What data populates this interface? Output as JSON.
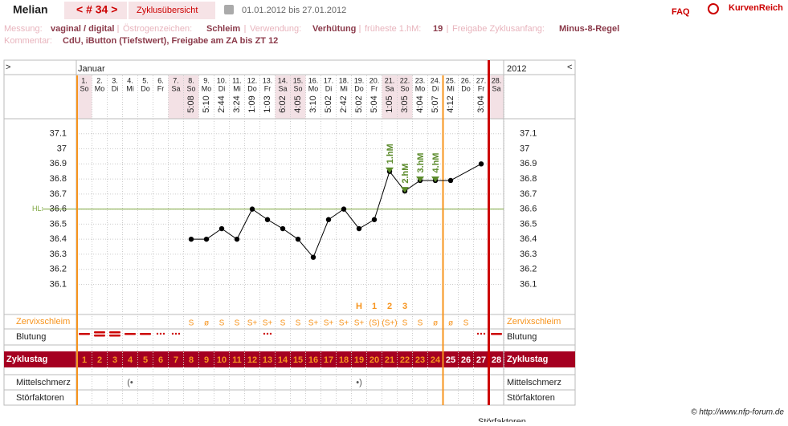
{
  "header": {
    "name": "Melian",
    "cycle": "< # 34 >",
    "tab": "Zyklusübersicht",
    "range": "01.01.2012 bis 27.01.2012",
    "faq": "FAQ",
    "brand": "KurvenReich"
  },
  "info": {
    "rows": [
      [
        {
          "label": "Messung:",
          "value": "vaginal / digital"
        },
        {
          "label": "Östrogenzeichen:",
          "value": "Schleim"
        },
        {
          "label": "Verwendung:",
          "value": "Verhütung"
        },
        {
          "label": "früheste 1.hM:",
          "value": "19"
        },
        {
          "label": "Freigabe Zyklusanfang:",
          "value": "Minus-8-Regel"
        }
      ],
      [
        {
          "label": "Kommentar:",
          "value": "CdU, iButton (Tiefstwert), Freigabe am ZA bis ZT 12"
        }
      ]
    ]
  },
  "chart_data": {
    "type": "line",
    "nav_left": ">",
    "nav_right": "<",
    "month": "Januar",
    "year": "2012",
    "categories": [
      "1.",
      "2.",
      "3.",
      "4.",
      "5.",
      "6.",
      "7.",
      "8.",
      "9.",
      "10.",
      "11.",
      "12.",
      "13.",
      "14.",
      "15.",
      "16.",
      "17.",
      "18.",
      "19.",
      "20.",
      "21.",
      "22.",
      "23.",
      "24.",
      "25.",
      "26.",
      "27.",
      "28."
    ],
    "weekdays": [
      "So",
      "Mo",
      "Di",
      "Mi",
      "Do",
      "Fr",
      "Sa",
      "So",
      "Mo",
      "Di",
      "Mi",
      "Do",
      "Fr",
      "Sa",
      "So",
      "Mo",
      "Di",
      "Mi",
      "Do",
      "Fr",
      "Sa",
      "So",
      "Mo",
      "Di",
      "Mi",
      "Do",
      "Fr",
      "Sa"
    ],
    "times": [
      null,
      null,
      null,
      null,
      null,
      null,
      null,
      "5:08",
      "5:10",
      "2:44",
      "3:24",
      "1:09",
      "1:03",
      "6:02",
      "4:05",
      "3:10",
      "5:02",
      "2:42",
      "5:02",
      "5:04",
      "1:05",
      "3:05",
      "4:04",
      "5:07",
      "4:12",
      null,
      "3:04",
      null
    ],
    "values": [
      null,
      null,
      null,
      null,
      null,
      null,
      null,
      36.4,
      36.4,
      36.47,
      36.4,
      36.6,
      36.53,
      36.47,
      36.4,
      36.28,
      36.53,
      36.6,
      36.47,
      36.53,
      36.85,
      36.72,
      36.79,
      36.79,
      36.79,
      null,
      36.9,
      null
    ],
    "color": "#000000",
    "ylim": [
      35.9,
      37.2
    ],
    "yticks": [
      36.1,
      36.2,
      36.3,
      36.4,
      36.5,
      36.6,
      36.7,
      36.8,
      36.9,
      37,
      37.1
    ],
    "coverline": {
      "label": "HL:",
      "value": 36.6,
      "color": "#7aa43a"
    },
    "markers": [
      {
        "day": 21,
        "label": "1.hM"
      },
      {
        "day": 22,
        "label": "2.hM"
      },
      {
        "day": 23,
        "label": "3.hM"
      },
      {
        "day": 24,
        "label": "4.hM"
      }
    ],
    "evaluation_end_day": 24,
    "cycle_end_day": 27,
    "rows": {
      "mucus": "Zervixschleim",
      "bleeding": "Blutung",
      "cycle_day": "Zyklustag",
      "pain": "Mittelschmerz",
      "disturbances": "Störfaktoren"
    },
    "mucus_top": [
      null,
      null,
      null,
      null,
      null,
      null,
      null,
      null,
      null,
      null,
      null,
      null,
      null,
      null,
      null,
      null,
      null,
      null,
      "H",
      "1",
      "2",
      "3",
      null,
      null,
      null,
      null,
      null,
      null
    ],
    "mucus": [
      null,
      null,
      null,
      null,
      null,
      null,
      null,
      "S",
      "ø",
      "S",
      "S",
      "S+",
      "S+",
      "S",
      "S",
      "S+",
      "S+",
      "S+",
      "S+",
      "(S)",
      "(S+)",
      "S",
      "S",
      "ø",
      "ø",
      "S",
      null,
      null
    ],
    "bleeding": [
      2,
      3,
      3,
      2,
      2,
      1,
      1,
      0,
      0,
      0,
      0,
      0,
      1,
      0,
      0,
      0,
      0,
      0,
      0,
      0,
      0,
      0,
      0,
      0,
      0,
      0,
      1,
      2
    ],
    "cycle_days": [
      1,
      2,
      3,
      4,
      5,
      6,
      7,
      8,
      9,
      10,
      11,
      12,
      13,
      14,
      15,
      16,
      17,
      18,
      19,
      20,
      21,
      22,
      23,
      24,
      25,
      26,
      27,
      28
    ],
    "pain": [
      null,
      null,
      null,
      "(•",
      null,
      null,
      null,
      null,
      null,
      null,
      null,
      null,
      null,
      null,
      null,
      null,
      null,
      null,
      "•)",
      null,
      null,
      null,
      null,
      null,
      null,
      null,
      null,
      null
    ]
  },
  "footer": {
    "copyright": "© http://www.nfp-forum.de",
    "cut": "Störfaktoren"
  }
}
